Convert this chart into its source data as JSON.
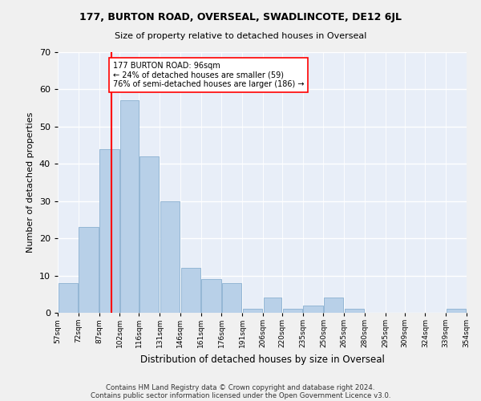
{
  "title": "177, BURTON ROAD, OVERSEAL, SWADLINCOTE, DE12 6JL",
  "subtitle": "Size of property relative to detached houses in Overseal",
  "xlabel": "Distribution of detached houses by size in Overseal",
  "ylabel": "Number of detached properties",
  "bar_color": "#b8d0e8",
  "bar_edge_color": "#8ab0d0",
  "property_line_x": 96,
  "property_line_color": "red",
  "annotation_line1": "177 BURTON ROAD: 96sqm",
  "annotation_line2": "← 24% of detached houses are smaller (59)",
  "annotation_line3": "76% of semi-detached houses are larger (186) →",
  "bins": [
    57,
    72,
    87,
    102,
    116,
    131,
    146,
    161,
    176,
    191,
    206,
    220,
    235,
    250,
    265,
    280,
    295,
    309,
    324,
    339,
    354
  ],
  "bin_labels": [
    "57sqm",
    "72sqm",
    "87sqm",
    "102sqm",
    "116sqm",
    "131sqm",
    "146sqm",
    "161sqm",
    "176sqm",
    "191sqm",
    "206sqm",
    "220sqm",
    "235sqm",
    "250sqm",
    "265sqm",
    "280sqm",
    "295sqm",
    "309sqm",
    "324sqm",
    "339sqm",
    "354sqm"
  ],
  "values": [
    8,
    23,
    44,
    57,
    42,
    30,
    12,
    9,
    8,
    1,
    4,
    1,
    2,
    4,
    1,
    0,
    0,
    0,
    0,
    1
  ],
  "ylim": [
    0,
    70
  ],
  "yticks": [
    0,
    10,
    20,
    30,
    40,
    50,
    60,
    70
  ],
  "background_color": "#e8eef8",
  "grid_color": "#ffffff",
  "footnote1": "Contains HM Land Registry data © Crown copyright and database right 2024.",
  "footnote2": "Contains public sector information licensed under the Open Government Licence v3.0."
}
